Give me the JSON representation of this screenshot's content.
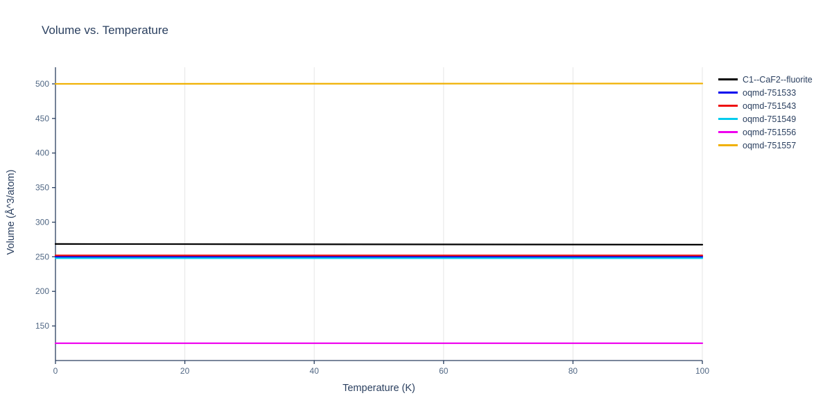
{
  "chart_data": {
    "type": "line",
    "title": "Volume vs. Temperature",
    "xlabel": "Temperature (K)",
    "ylabel": "Volume (Å^3/atom)",
    "xlim": [
      0,
      100
    ],
    "ylim": [
      100,
      524
    ],
    "xticks": [
      0,
      20,
      40,
      60,
      80,
      100
    ],
    "yticks": [
      150,
      200,
      250,
      300,
      350,
      400,
      450,
      500
    ],
    "grid": "faint vertical gridlines at x ticks only",
    "legend_position": "outside top-right",
    "x": [
      0,
      100
    ],
    "series": [
      {
        "name": "C1--CaF2--fluorite",
        "color": "#000000",
        "values": [
          268.5,
          267.5
        ]
      },
      {
        "name": "oqmd-751533",
        "color": "#0000ee",
        "values": [
          250,
          250
        ]
      },
      {
        "name": "oqmd-751543",
        "color": "#ee1111",
        "values": [
          252,
          252
        ]
      },
      {
        "name": "oqmd-751549",
        "color": "#00ccee",
        "values": [
          248,
          248
        ]
      },
      {
        "name": "oqmd-751556",
        "color": "#ee00ee",
        "values": [
          125,
          125
        ]
      },
      {
        "name": "oqmd-751557",
        "color": "#f0b000",
        "values": [
          500,
          500.5
        ]
      }
    ]
  }
}
